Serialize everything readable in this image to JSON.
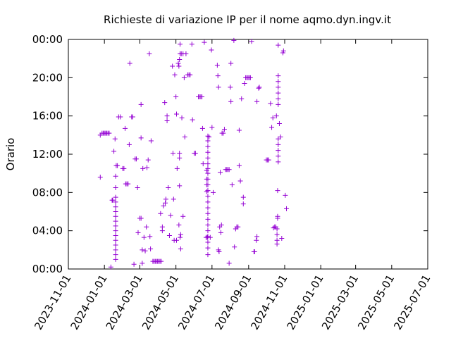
{
  "chart_data": {
    "type": "scatter",
    "title": "Richieste di variazione IP per il nome aqmo.dyn.ingv.it",
    "xlabel": "",
    "ylabel": "Orario",
    "x_ticks": [
      "2023-11-01",
      "2024-01-01",
      "2024-03-01",
      "2024-05-01",
      "2024-07-01",
      "2024-09-01",
      "2024-11-01",
      "2025-01-01",
      "2025-03-01",
      "2025-05-01",
      "2025-07-01"
    ],
    "y_ticks": [
      "00:00",
      "04:00",
      "08:00",
      "12:00",
      "16:00",
      "20:00",
      "00:00"
    ],
    "xlim": [
      "2023-11-01",
      "2025-07-01"
    ],
    "ylim_hours": [
      0,
      24
    ],
    "color": "#9400d3",
    "marker": "plus",
    "grid": false,
    "legend": "none",
    "series": [
      {
        "points": [
          [
            "2023-12-25",
            9.6
          ],
          [
            "2023-12-25",
            14.0
          ],
          [
            "2023-12-28",
            14.2
          ],
          [
            "2023-12-30",
            14.2
          ],
          [
            "2024-01-01",
            14.2
          ],
          [
            "2024-01-03",
            14.2
          ],
          [
            "2024-01-05",
            14.2
          ],
          [
            "2024-01-07",
            14.2
          ],
          [
            "2024-01-09",
            14.2
          ],
          [
            "2024-01-12",
            0.2
          ],
          [
            "2024-01-14",
            7.2
          ],
          [
            "2024-01-15",
            7.2
          ],
          [
            "2024-01-17",
            12.3
          ],
          [
            "2024-01-19",
            13.6
          ],
          [
            "2024-01-20",
            1.0
          ],
          [
            "2024-01-20",
            1.5
          ],
          [
            "2024-01-20",
            2.0
          ],
          [
            "2024-01-20",
            2.5
          ],
          [
            "2024-01-20",
            3.0
          ],
          [
            "2024-01-20",
            3.5
          ],
          [
            "2024-01-20",
            4.0
          ],
          [
            "2024-01-20",
            4.5
          ],
          [
            "2024-01-20",
            5.0
          ],
          [
            "2024-01-20",
            5.5
          ],
          [
            "2024-01-20",
            6.0
          ],
          [
            "2024-01-20",
            6.5
          ],
          [
            "2024-01-20",
            7.0
          ],
          [
            "2024-01-20",
            7.5
          ],
          [
            "2024-01-20",
            8.5
          ],
          [
            "2024-01-20",
            9.7
          ],
          [
            "2024-01-21",
            10.8
          ],
          [
            "2024-01-23",
            10.8
          ],
          [
            "2024-01-25",
            15.9
          ],
          [
            "2024-01-28",
            15.9
          ],
          [
            "2024-02-01",
            10.5
          ],
          [
            "2024-02-03",
            10.5
          ],
          [
            "2024-02-05",
            14.7
          ],
          [
            "2024-02-06",
            8.9
          ],
          [
            "2024-02-08",
            8.9
          ],
          [
            "2024-02-10",
            8.9
          ],
          [
            "2024-02-12",
            13.0
          ],
          [
            "2024-02-13",
            21.5
          ],
          [
            "2024-02-16",
            15.9
          ],
          [
            "2024-02-18",
            15.9
          ],
          [
            "2024-02-20",
            0.5
          ],
          [
            "2024-02-22",
            11.5
          ],
          [
            "2024-02-24",
            11.5
          ],
          [
            "2024-02-26",
            8.5
          ],
          [
            "2024-02-27",
            3.8
          ],
          [
            "2024-03-01",
            5.3
          ],
          [
            "2024-03-03",
            5.3
          ],
          [
            "2024-03-03",
            13.7
          ],
          [
            "2024-03-03",
            17.2
          ],
          [
            "2024-03-05",
            2.0
          ],
          [
            "2024-03-05",
            0.6
          ],
          [
            "2024-03-06",
            10.5
          ],
          [
            "2024-03-08",
            3.3
          ],
          [
            "2024-03-10",
            1.9
          ],
          [
            "2024-03-12",
            4.4
          ],
          [
            "2024-03-13",
            10.6
          ],
          [
            "2024-03-15",
            11.4
          ],
          [
            "2024-03-17",
            22.5
          ],
          [
            "2024-03-18",
            3.4
          ],
          [
            "2024-03-19",
            2.1
          ],
          [
            "2024-03-20",
            13.4
          ],
          [
            "2024-03-23",
            0.8
          ],
          [
            "2024-03-25",
            0.8
          ],
          [
            "2024-03-27",
            0.8
          ],
          [
            "2024-03-29",
            0.8
          ],
          [
            "2024-03-31",
            0.8
          ],
          [
            "2024-04-02",
            0.8
          ],
          [
            "2024-04-04",
            0.8
          ],
          [
            "2024-04-05",
            5.8
          ],
          [
            "2024-04-06",
            0.8
          ],
          [
            "2024-04-08",
            4.0
          ],
          [
            "2024-04-08",
            4.4
          ],
          [
            "2024-04-10",
            6.6
          ],
          [
            "2024-04-12",
            17.4
          ],
          [
            "2024-04-13",
            6.9
          ],
          [
            "2024-04-14",
            7.3
          ],
          [
            "2024-04-16",
            15.5
          ],
          [
            "2024-04-16",
            16.0
          ],
          [
            "2024-04-18",
            8.5
          ],
          [
            "2024-04-20",
            3.5
          ],
          [
            "2024-04-22",
            5.6
          ],
          [
            "2024-04-25",
            21.2
          ],
          [
            "2024-04-26",
            12.1
          ],
          [
            "2024-04-27",
            7.3
          ],
          [
            "2024-04-28",
            3.0
          ],
          [
            "2024-04-29",
            20.3
          ],
          [
            "2024-05-01",
            18.0
          ],
          [
            "2024-05-02",
            16.2
          ],
          [
            "2024-05-02",
            3.0
          ],
          [
            "2024-05-03",
            10.5
          ],
          [
            "2024-05-05",
            21.5
          ],
          [
            "2024-05-06",
            21.2
          ],
          [
            "2024-05-06",
            4.6
          ],
          [
            "2024-05-07",
            8.7
          ],
          [
            "2024-05-07",
            21.9
          ],
          [
            "2024-05-07",
            11.6
          ],
          [
            "2024-05-07",
            12.1
          ],
          [
            "2024-05-08",
            22.5
          ],
          [
            "2024-05-08",
            23.5
          ],
          [
            "2024-05-08",
            3.3
          ],
          [
            "2024-05-09",
            3.6
          ],
          [
            "2024-05-09",
            2.1
          ],
          [
            "2024-05-10",
            22.5
          ],
          [
            "2024-05-11",
            15.8
          ],
          [
            "2024-05-13",
            5.5
          ],
          [
            "2024-05-13",
            22.5
          ],
          [
            "2024-05-15",
            20.0
          ],
          [
            "2024-05-16",
            13.8
          ],
          [
            "2024-05-18",
            22.5
          ],
          [
            "2024-05-21",
            20.3
          ],
          [
            "2024-05-23",
            20.3
          ],
          [
            "2024-05-25",
            20.3
          ],
          [
            "2024-05-28",
            23.5
          ],
          [
            "2024-05-29",
            15.6
          ],
          [
            "2024-06-01",
            12.1
          ],
          [
            "2024-06-03",
            12.1
          ],
          [
            "2024-06-08",
            18.0
          ],
          [
            "2024-06-10",
            18.0
          ],
          [
            "2024-06-12",
            18.0
          ],
          [
            "2024-06-14",
            18.0
          ],
          [
            "2024-06-15",
            14.7
          ],
          [
            "2024-06-16",
            11.0
          ],
          [
            "2024-06-18",
            23.7
          ],
          [
            "2024-06-21",
            3.3
          ],
          [
            "2024-06-23",
            3.3
          ],
          [
            "2024-06-24",
            1.5
          ],
          [
            "2024-06-24",
            2.2
          ],
          [
            "2024-06-24",
            2.8
          ],
          [
            "2024-06-24",
            3.4
          ],
          [
            "2024-06-24",
            4.0
          ],
          [
            "2024-06-24",
            4.6
          ],
          [
            "2024-06-24",
            5.2
          ],
          [
            "2024-06-24",
            5.8
          ],
          [
            "2024-06-24",
            6.4
          ],
          [
            "2024-06-24",
            7.0
          ],
          [
            "2024-06-24",
            7.6
          ],
          [
            "2024-06-24",
            8.2
          ],
          [
            "2024-06-24",
            8.8
          ],
          [
            "2024-06-24",
            9.4
          ],
          [
            "2024-06-24",
            10.0
          ],
          [
            "2024-06-24",
            10.5
          ],
          [
            "2024-06-24",
            11.0
          ],
          [
            "2024-06-24",
            11.6
          ],
          [
            "2024-06-24",
            12.2
          ],
          [
            "2024-06-24",
            12.8
          ],
          [
            "2024-06-24",
            13.4
          ],
          [
            "2024-06-24",
            13.9
          ],
          [
            "2024-06-22",
            8.1
          ],
          [
            "2024-06-22",
            8.8
          ],
          [
            "2024-06-22",
            9.4
          ],
          [
            "2024-06-22",
            10.3
          ],
          [
            "2024-06-26",
            13.8
          ],
          [
            "2024-06-28",
            3.3
          ],
          [
            "2024-06-30",
            22.9
          ],
          [
            "2024-07-01",
            14.8
          ],
          [
            "2024-07-03",
            8.0
          ],
          [
            "2024-07-10",
            21.3
          ],
          [
            "2024-07-11",
            20.2
          ],
          [
            "2024-07-12",
            19.0
          ],
          [
            "2024-07-12",
            2.0
          ],
          [
            "2024-07-13",
            1.8
          ],
          [
            "2024-07-14",
            4.4
          ],
          [
            "2024-07-15",
            10.1
          ],
          [
            "2024-07-16",
            3.8
          ],
          [
            "2024-07-17",
            4.6
          ],
          [
            "2024-07-18",
            14.2
          ],
          [
            "2024-07-20",
            14.2
          ],
          [
            "2024-07-22",
            14.6
          ],
          [
            "2024-07-24",
            10.4
          ],
          [
            "2024-07-26",
            10.4
          ],
          [
            "2024-07-28",
            10.4
          ],
          [
            "2024-07-30",
            10.4
          ],
          [
            "2024-07-30",
            0.6
          ],
          [
            "2024-08-01",
            19.0
          ],
          [
            "2024-08-02",
            17.5
          ],
          [
            "2024-08-02",
            21.5
          ],
          [
            "2024-08-04",
            8.8
          ],
          [
            "2024-08-07",
            23.9
          ],
          [
            "2024-08-08",
            2.3
          ],
          [
            "2024-08-10",
            4.2
          ],
          [
            "2024-08-12",
            4.4
          ],
          [
            "2024-08-14",
            4.4
          ],
          [
            "2024-08-16",
            14.5
          ],
          [
            "2024-08-16",
            10.8
          ],
          [
            "2024-08-18",
            9.2
          ],
          [
            "2024-08-20",
            17.8
          ],
          [
            "2024-08-23",
            6.8
          ],
          [
            "2024-08-23",
            7.5
          ],
          [
            "2024-08-25",
            19.4
          ],
          [
            "2024-08-27",
            20.0
          ],
          [
            "2024-08-29",
            20.0
          ],
          [
            "2024-08-31",
            20.0
          ],
          [
            "2024-09-02",
            20.0
          ],
          [
            "2024-09-04",
            20.0
          ],
          [
            "2024-09-06",
            23.8
          ],
          [
            "2024-09-10",
            1.8
          ],
          [
            "2024-09-11",
            1.8
          ],
          [
            "2024-09-14",
            3.0
          ],
          [
            "2024-09-15",
            3.4
          ],
          [
            "2024-09-15",
            17.5
          ],
          [
            "2024-09-18",
            18.9
          ],
          [
            "2024-09-19",
            19.0
          ],
          [
            "2024-10-01",
            11.4
          ],
          [
            "2024-10-03",
            11.4
          ],
          [
            "2024-10-05",
            11.4
          ],
          [
            "2024-10-08",
            17.3
          ],
          [
            "2024-10-10",
            14.8
          ],
          [
            "2024-10-13",
            4.3
          ],
          [
            "2024-10-12",
            15.8
          ],
          [
            "2024-10-15",
            4.4
          ],
          [
            "2024-10-17",
            4.4
          ],
          [
            "2024-10-18",
            16.0
          ],
          [
            "2024-10-19",
            2.6
          ],
          [
            "2024-10-19",
            3.0
          ],
          [
            "2024-10-19",
            3.6
          ],
          [
            "2024-10-19",
            4.2
          ],
          [
            "2024-10-20",
            5.3
          ],
          [
            "2024-10-20",
            5.5
          ],
          [
            "2024-10-20",
            8.2
          ],
          [
            "2024-10-21",
            23.4
          ],
          [
            "2024-10-21",
            11.2
          ],
          [
            "2024-10-21",
            11.8
          ],
          [
            "2024-10-21",
            12.4
          ],
          [
            "2024-10-21",
            13.0
          ],
          [
            "2024-10-21",
            13.6
          ],
          [
            "2024-10-21",
            17.2
          ],
          [
            "2024-10-21",
            17.8
          ],
          [
            "2024-10-21",
            18.4
          ],
          [
            "2024-10-21",
            19.0
          ],
          [
            "2024-10-21",
            19.6
          ],
          [
            "2024-10-21",
            20.2
          ],
          [
            "2024-10-23",
            15.2
          ],
          [
            "2024-10-25",
            13.8
          ],
          [
            "2024-10-27",
            3.2
          ],
          [
            "2024-10-29",
            22.6
          ],
          [
            "2024-10-30",
            22.8
          ],
          [
            "2024-11-02",
            7.7
          ],
          [
            "2024-11-04",
            6.3
          ]
        ]
      }
    ]
  }
}
